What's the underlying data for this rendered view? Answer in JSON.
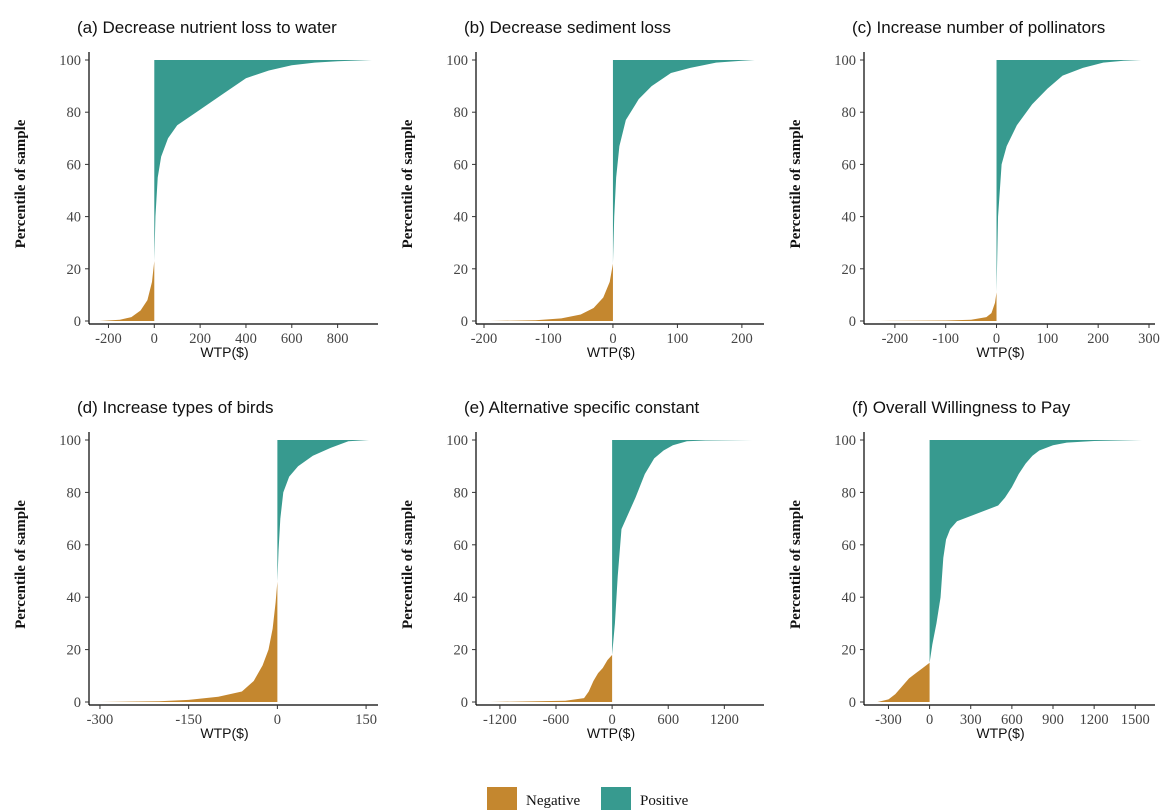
{
  "colors": {
    "negative": "#C4872F",
    "positive": "#379A8F"
  },
  "legend": {
    "items": [
      {
        "label": "Negative",
        "color": "#C4872F"
      },
      {
        "label": "Positive",
        "color": "#379A8F"
      }
    ],
    "placement": "bottom-center"
  },
  "chart_data": [
    {
      "type": "area",
      "title": "(a) Decrease nutrient loss to water",
      "xlabel": "WTP($)",
      "ylabel": "Percentile of sample",
      "xlim": [
        -250,
        950
      ],
      "ylim": [
        0,
        100
      ],
      "xticks": [
        -200,
        0,
        200,
        400,
        600,
        800
      ],
      "yticks": [
        0,
        20,
        40,
        60,
        80,
        100
      ],
      "curve": {
        "x": [
          -240,
          -150,
          -100,
          -60,
          -30,
          -10,
          0,
          0,
          5,
          15,
          30,
          60,
          100,
          200,
          300,
          400,
          500,
          600,
          700,
          800,
          950
        ],
        "y": [
          0,
          0.5,
          1.5,
          4,
          8,
          15,
          23,
          23,
          40,
          55,
          63,
          70,
          75,
          81,
          87,
          93,
          96,
          98,
          99,
          99.5,
          100
        ]
      }
    },
    {
      "type": "area",
      "title": "(b) Decrease sediment loss",
      "xlabel": "WTP($)",
      "ylabel": "Percentile of sample",
      "xlim": [
        -200,
        225
      ],
      "ylim": [
        0,
        100
      ],
      "xticks": [
        -200,
        -100,
        0,
        100,
        200
      ],
      "yticks": [
        0,
        20,
        40,
        60,
        80,
        100
      ],
      "curve": {
        "x": [
          -190,
          -120,
          -80,
          -50,
          -30,
          -15,
          -5,
          0,
          0,
          2,
          5,
          10,
          20,
          40,
          60,
          90,
          120,
          160,
          200,
          220
        ],
        "y": [
          0,
          0.3,
          1,
          2.5,
          5,
          9,
          15,
          22,
          22,
          40,
          55,
          67,
          77,
          85,
          90,
          95,
          97,
          99,
          99.7,
          100
        ]
      }
    },
    {
      "type": "area",
      "title": "(c) Increase number of pollinators",
      "xlabel": "WTP($)",
      "ylabel": "Percentile of sample",
      "xlim": [
        -245,
        300
      ],
      "ylim": [
        0,
        100
      ],
      "xticks": [
        -200,
        -100,
        0,
        100,
        200,
        300
      ],
      "yticks": [
        0,
        20,
        40,
        60,
        80,
        100
      ],
      "curve": {
        "x": [
          -230,
          -100,
          -50,
          -20,
          -10,
          -3,
          0,
          0,
          3,
          10,
          20,
          40,
          70,
          100,
          130,
          170,
          210,
          250,
          285
        ],
        "y": [
          0,
          0.2,
          0.5,
          1.5,
          3,
          7,
          11,
          11,
          40,
          60,
          67,
          75,
          83,
          89,
          94,
          97,
          99,
          99.7,
          100
        ]
      }
    },
    {
      "type": "area",
      "title": "(d) Increase types of birds",
      "xlabel": "WTP($)",
      "ylabel": "Percentile of sample",
      "xlim": [
        -305,
        160
      ],
      "ylim": [
        0,
        100
      ],
      "xticks": [
        -300,
        -150,
        0,
        150
      ],
      "yticks": [
        0,
        20,
        40,
        60,
        80,
        100
      ],
      "curve": {
        "x": [
          -300,
          -200,
          -150,
          -100,
          -60,
          -40,
          -25,
          -15,
          -8,
          -3,
          0,
          0,
          2,
          5,
          10,
          20,
          35,
          60,
          90,
          120,
          155
        ],
        "y": [
          0,
          0.3,
          0.8,
          2,
          4,
          8,
          14,
          20,
          28,
          38,
          46,
          46,
          58,
          70,
          80,
          86,
          90,
          94,
          97,
          99.5,
          100
        ]
      }
    },
    {
      "type": "area",
      "title": "(e) Alternative specific constant",
      "xlabel": "WTP($)",
      "ylabel": "Percentile of sample",
      "xlim": [
        -1370,
        1560
      ],
      "ylim": [
        0,
        100
      ],
      "xticks": [
        -1200,
        -600,
        0,
        600,
        1200
      ],
      "yticks": [
        0,
        20,
        40,
        60,
        80,
        100
      ],
      "curve": {
        "x": [
          -1300,
          -500,
          -300,
          -250,
          -200,
          -150,
          -100,
          -50,
          0,
          0,
          30,
          60,
          100,
          150,
          250,
          350,
          450,
          550,
          650,
          800,
          1000,
          1500
        ],
        "y": [
          0,
          0.5,
          1.5,
          4,
          8,
          11,
          13,
          16,
          18,
          18,
          30,
          48,
          66,
          70,
          78,
          87,
          93,
          96,
          98,
          99.5,
          99.8,
          100
        ]
      }
    },
    {
      "type": "area",
      "title": "(f) Overall Willingness to Pay",
      "xlabel": "WTP($)",
      "ylabel": "Percentile of sample",
      "xlim": [
        -420,
        1600
      ],
      "ylim": [
        0,
        100
      ],
      "xticks": [
        -300,
        0,
        300,
        600,
        900,
        1200,
        1500
      ],
      "yticks": [
        0,
        20,
        40,
        60,
        80,
        100
      ],
      "curve": {
        "x": [
          -380,
          -300,
          -250,
          -200,
          -150,
          -100,
          -50,
          0,
          0,
          20,
          50,
          80,
          100,
          120,
          150,
          200,
          300,
          400,
          500,
          550,
          600,
          650,
          700,
          750,
          800,
          900,
          1000,
          1200,
          1550
        ],
        "y": [
          0,
          1,
          3,
          6,
          9,
          11,
          13,
          15,
          15,
          22,
          30,
          40,
          55,
          62,
          66,
          69,
          71,
          73,
          75,
          78,
          82,
          87,
          91,
          94,
          96,
          98,
          99,
          99.6,
          100
        ]
      }
    }
  ]
}
